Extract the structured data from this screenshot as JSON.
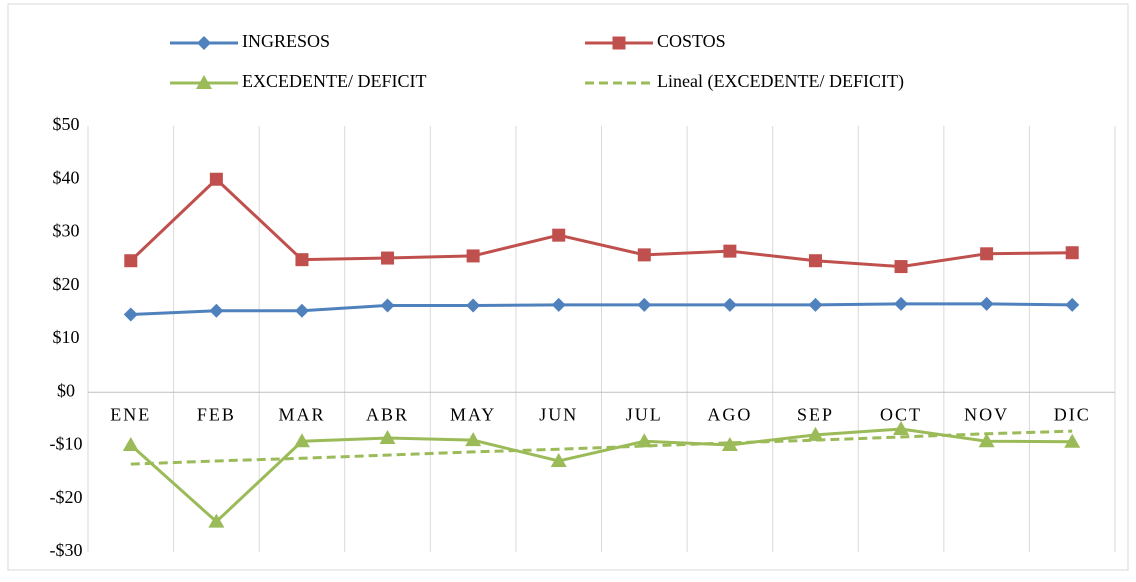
{
  "chart_data": {
    "type": "line",
    "categories": [
      "ENE",
      "FEB",
      "MAR",
      "ABR",
      "MAY",
      "JUN",
      "JUL",
      "AGO",
      "SEP",
      "OCT",
      "NOV",
      "DIC"
    ],
    "series": [
      {
        "name": "INGRESOS",
        "color": "#4f81bd",
        "marker": "diamond",
        "values": [
          14.6,
          15.3,
          15.3,
          16.3,
          16.3,
          16.4,
          16.4,
          16.4,
          16.4,
          16.6,
          16.6,
          16.4
        ]
      },
      {
        "name": "COSTOS",
        "color": "#c0504d",
        "marker": "square",
        "values": [
          24.7,
          40,
          24.9,
          25.2,
          25.6,
          29.5,
          25.8,
          26.5,
          24.7,
          23.6,
          26,
          26.2
        ]
      },
      {
        "name": "EXCEDENTE/ DEFICIT",
        "color": "#9bbb59",
        "marker": "triangle",
        "values": [
          -9.9,
          -24.3,
          -9.2,
          -8.6,
          -9.0,
          -12.9,
          -9.2,
          -9.9,
          -8.0,
          -6.9,
          -9.2,
          -9.3
        ]
      },
      {
        "name": "Lineal (EXCEDENTE/ DEFICIT)",
        "color": "#9bbb59",
        "dashed": true,
        "values": [
          -13.5,
          -12.9,
          -12.4,
          -11.8,
          -11.2,
          -10.7,
          -10.1,
          -9.5,
          -9.0,
          -8.4,
          -7.8,
          -7.3
        ]
      }
    ],
    "ylim": [
      -30,
      50
    ],
    "yticks": [
      {
        "value": -30,
        "label": "-$30"
      },
      {
        "value": -20,
        "label": "-$20"
      },
      {
        "value": -10,
        "label": "-$10"
      },
      {
        "value": 0,
        "label": "$0"
      },
      {
        "value": 10,
        "label": "$10"
      },
      {
        "value": 20,
        "label": "$20"
      },
      {
        "value": 30,
        "label": "$30"
      },
      {
        "value": 40,
        "label": "$40"
      },
      {
        "value": 50,
        "label": "$50"
      }
    ],
    "legend": "top"
  }
}
